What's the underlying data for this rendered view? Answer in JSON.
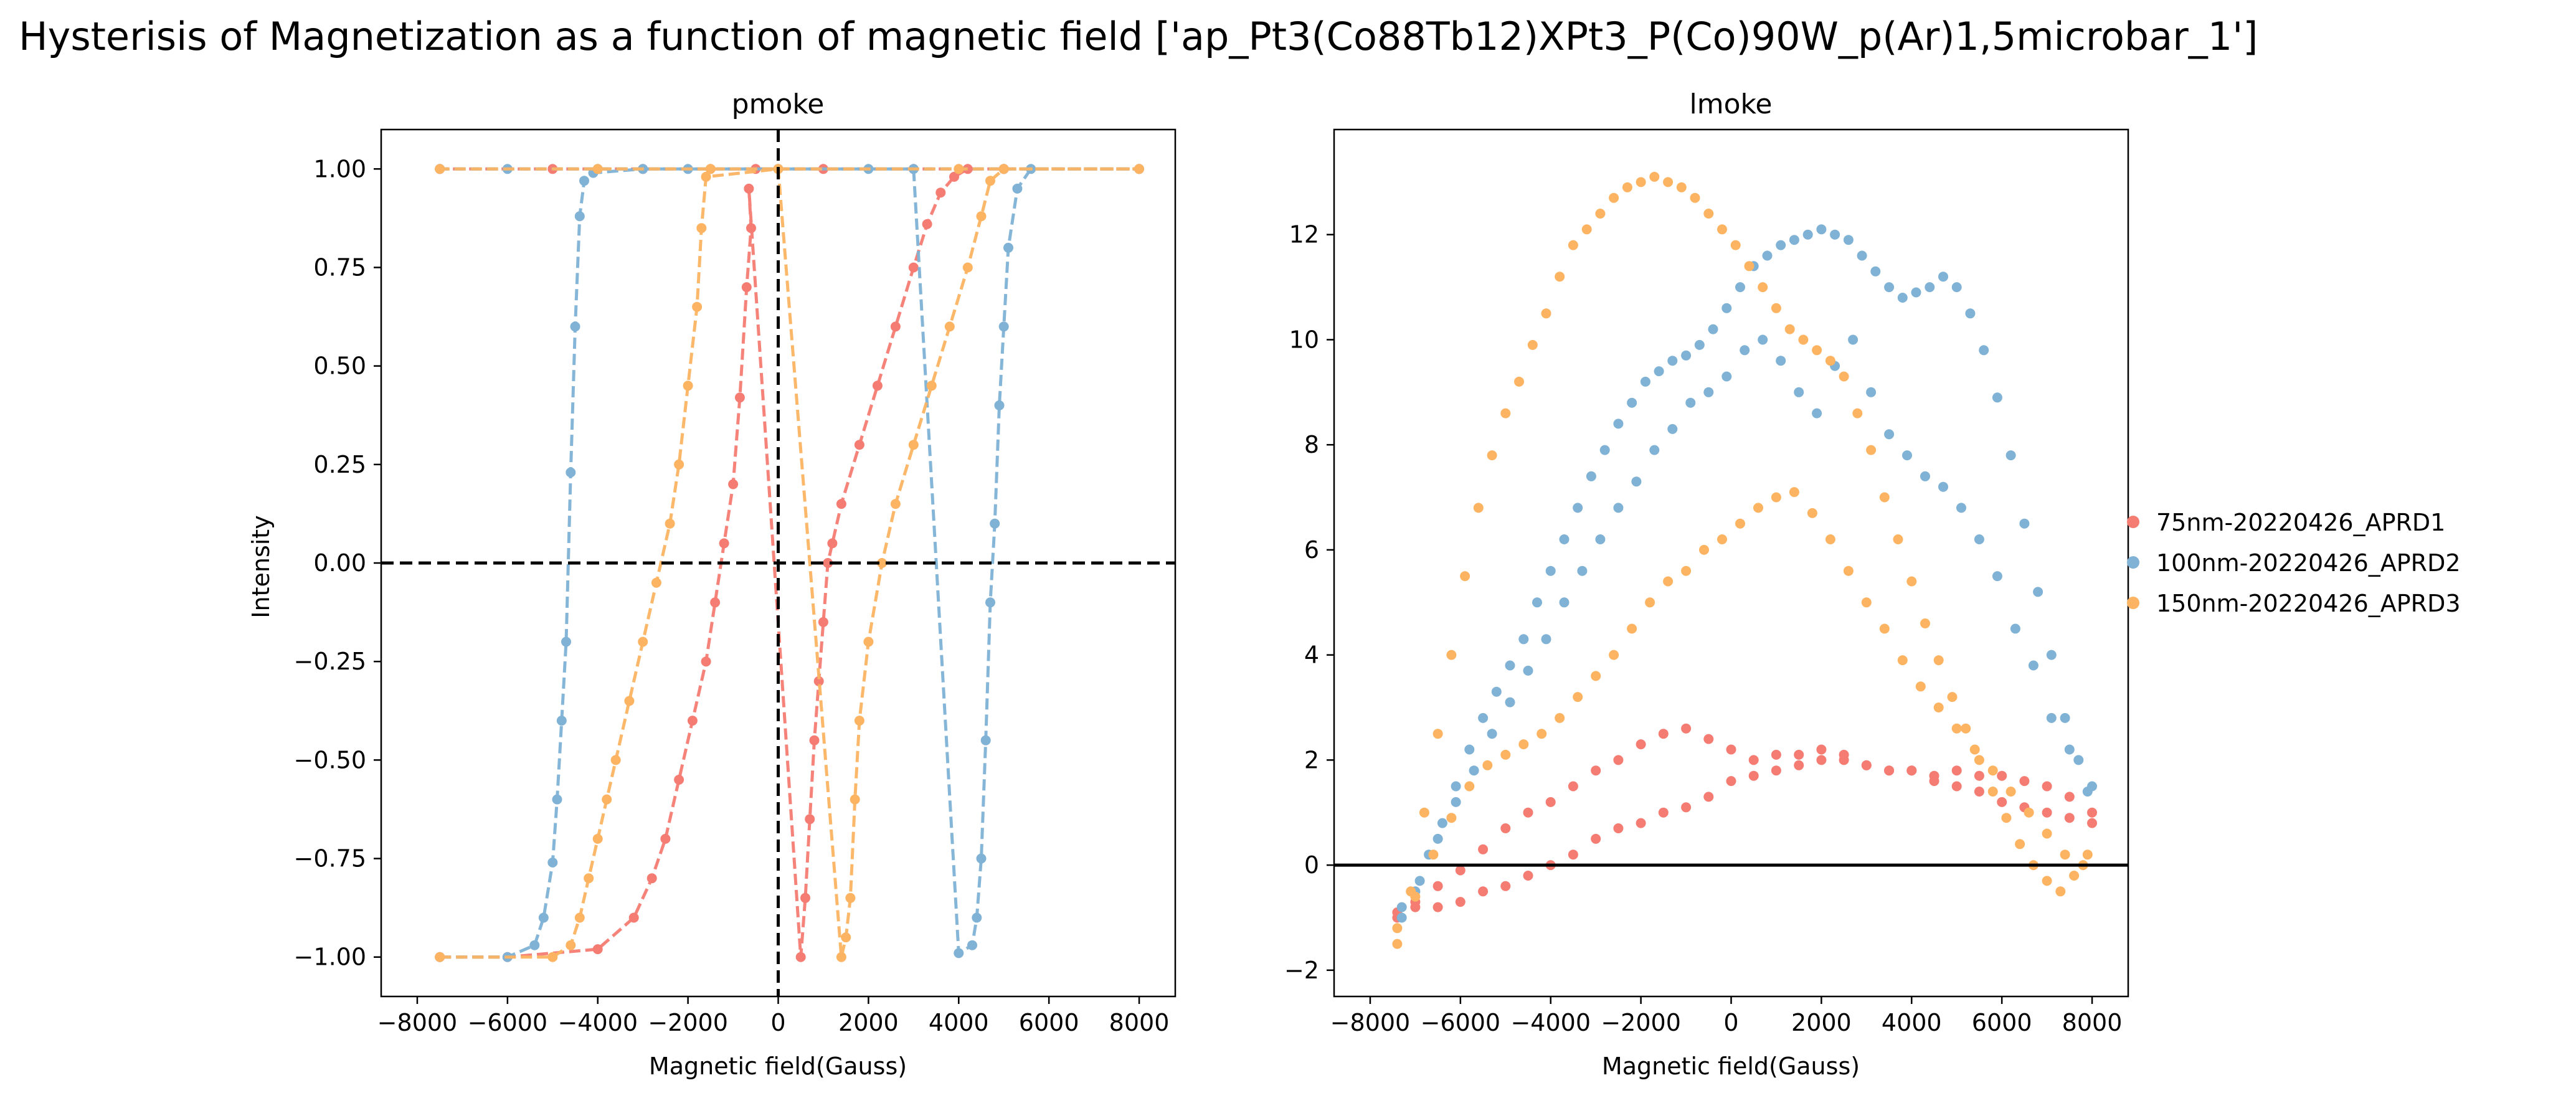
{
  "figure_title": "Hysterisis of Magnetization as a function of magnetic field ['ap_Pt3(Co88Tb12)XPt3_P(Co)90W_p(Ar)1,5microbar_1']",
  "colors": {
    "s1": "#f47c73",
    "s2": "#7fb2d5",
    "s3": "#fcb462",
    "axis": "#000000"
  },
  "legend": {
    "placement": "right-outside",
    "entries": [
      "75nm-20220426_APRD1",
      "100nm-20220426_APRD2",
      "150nm-20220426_APRD3"
    ]
  },
  "chart_data": [
    {
      "type": "line",
      "title": "pmoke",
      "xlabel": "Magnetic field(Gauss)",
      "ylabel": "Intensity",
      "xlim": [
        -8800,
        8800
      ],
      "ylim": [
        -1.1,
        1.1
      ],
      "xticks": [
        -8000,
        -6000,
        -4000,
        -2000,
        0,
        2000,
        4000,
        6000,
        8000
      ],
      "xtick_labels": [
        "−8000",
        "−6000",
        "−4000",
        "−2000",
        "0",
        "2000",
        "4000",
        "6000",
        "8000"
      ],
      "yticks": [
        -1.0,
        -0.75,
        -0.5,
        -0.25,
        0.0,
        0.25,
        0.5,
        0.75,
        1.0
      ],
      "ytick_labels": [
        "−1.00",
        "−0.75",
        "−0.50",
        "−0.25",
        "0.00",
        "0.25",
        "0.50",
        "0.75",
        "1.00"
      ],
      "reference_lines": {
        "x": 0,
        "y": 0,
        "style": "dashed"
      },
      "series": [
        {
          "name": "75nm-20220426_APRD1",
          "color": "#f47c73",
          "x": [
            -7500,
            -6000,
            -4000,
            -3200,
            -2800,
            -2500,
            -2200,
            -1900,
            -1600,
            -1400,
            -1200,
            -1000,
            -850,
            -700,
            -600,
            -650,
            500,
            600,
            700,
            800,
            900,
            1000,
            1100,
            1200,
            1400,
            1800,
            2200,
            2600,
            3000,
            3300,
            3600,
            3900,
            4200,
            5000,
            8000,
            5000,
            3000,
            1000,
            -500,
            -1500,
            -3000,
            -5000,
            -7500
          ],
          "y": [
            -1,
            -1,
            -0.98,
            -0.9,
            -0.8,
            -0.7,
            -0.55,
            -0.4,
            -0.25,
            -0.1,
            0.05,
            0.2,
            0.42,
            0.7,
            0.85,
            0.95,
            -1,
            -0.85,
            -0.65,
            -0.45,
            -0.3,
            -0.15,
            0,
            0.05,
            0.15,
            0.3,
            0.45,
            0.6,
            0.75,
            0.86,
            0.94,
            0.98,
            1.0,
            1.0,
            1.0,
            1.0,
            1.0,
            1.0,
            1.0,
            1.0,
            1.0,
            1.0,
            1.0
          ]
        },
        {
          "name": "100nm-20220426_APRD2",
          "color": "#7fb2d5",
          "x": [
            -7500,
            -6000,
            -5400,
            -5200,
            -5000,
            -4900,
            -4800,
            -4700,
            -4600,
            -4500,
            -4400,
            -4300,
            -4100,
            -3000,
            0,
            3000,
            4000,
            4300,
            4400,
            4500,
            4600,
            4700,
            4800,
            4900,
            5000,
            5100,
            5300,
            5600,
            8000,
            5000,
            2000,
            0,
            -2000,
            -4000,
            -6000,
            -7500
          ],
          "y": [
            -1,
            -1,
            -0.97,
            -0.9,
            -0.76,
            -0.6,
            -0.4,
            -0.2,
            0.23,
            0.6,
            0.88,
            0.97,
            0.99,
            1.0,
            1.0,
            1.0,
            -0.99,
            -0.97,
            -0.9,
            -0.75,
            -0.45,
            -0.1,
            0.1,
            0.4,
            0.6,
            0.8,
            0.95,
            1.0,
            1.0,
            1.0,
            1.0,
            1.0,
            1.0,
            1.0,
            1.0,
            1.0
          ]
        },
        {
          "name": "150nm-20220426_APRD3",
          "color": "#fcb462",
          "x": [
            -7500,
            -5000,
            -4600,
            -4400,
            -4200,
            -4000,
            -3800,
            -3600,
            -3300,
            -3000,
            -2700,
            -2400,
            -2200,
            -2000,
            -1800,
            -1700,
            -1600,
            0,
            1400,
            1500,
            1600,
            1700,
            1800,
            2000,
            2300,
            2600,
            3000,
            3400,
            3800,
            4200,
            4500,
            4700,
            5000,
            8000,
            4000,
            0,
            -1500,
            -4000,
            -7500
          ],
          "y": [
            -1,
            -1,
            -0.97,
            -0.9,
            -0.8,
            -0.7,
            -0.6,
            -0.5,
            -0.35,
            -0.2,
            -0.05,
            0.1,
            0.25,
            0.45,
            0.65,
            0.85,
            0.98,
            1.0,
            -1,
            -0.95,
            -0.85,
            -0.6,
            -0.4,
            -0.2,
            0,
            0.15,
            0.3,
            0.45,
            0.6,
            0.75,
            0.88,
            0.97,
            1.0,
            1.0,
            1.0,
            1.0,
            1.0,
            1.0,
            1.0
          ]
        }
      ]
    },
    {
      "type": "scatter",
      "title": "lmoke",
      "xlabel": "Magnetic field(Gauss)",
      "ylabel": "",
      "xlim": [
        -8800,
        8800
      ],
      "ylim": [
        -2.5,
        14.0
      ],
      "xticks": [
        -8000,
        -6000,
        -4000,
        -2000,
        0,
        2000,
        4000,
        6000,
        8000
      ],
      "xtick_labels": [
        "−8000",
        "−6000",
        "−4000",
        "−2000",
        "0",
        "2000",
        "4000",
        "6000",
        "8000"
      ],
      "yticks": [
        -2,
        0,
        2,
        4,
        6,
        8,
        10,
        12
      ],
      "ytick_labels": [
        "−2",
        "0",
        "2",
        "4",
        "6",
        "8",
        "10",
        "12"
      ],
      "reference_lines": {
        "y": 0,
        "style": "solid"
      },
      "series": [
        {
          "name": "75nm-20220426_APRD1",
          "color": "#f47c73",
          "x": [
            -7400,
            -7000,
            -6500,
            -6000,
            -5500,
            -5000,
            -4500,
            -4000,
            -3500,
            -3000,
            -2500,
            -2000,
            -1500,
            -1000,
            -500,
            0,
            500,
            1000,
            1500,
            2000,
            2500,
            3000,
            3500,
            4000,
            4500,
            5000,
            5500,
            6000,
            6500,
            7000,
            7500,
            8000,
            -7400,
            -7000,
            -6500,
            -6000,
            -5500,
            -5000,
            -4500,
            -4000,
            -3500,
            -3000,
            -2500,
            -2000,
            -1500,
            -1000,
            -500,
            0,
            500,
            1000,
            1500,
            2000,
            2500,
            3000,
            3500,
            4000,
            4500,
            5000,
            5500,
            6000,
            6500,
            7000,
            7500,
            8000
          ],
          "y": [
            -1.0,
            -0.7,
            -0.4,
            -0.1,
            0.3,
            0.7,
            1.0,
            1.2,
            1.5,
            1.8,
            2.0,
            2.3,
            2.5,
            2.6,
            2.4,
            2.2,
            2.0,
            2.1,
            2.1,
            2.2,
            2.0,
            1.9,
            1.8,
            1.8,
            1.7,
            1.8,
            1.7,
            1.7,
            1.6,
            1.5,
            1.3,
            1.0,
            -0.9,
            -0.8,
            -0.8,
            -0.7,
            -0.5,
            -0.4,
            -0.2,
            0.0,
            0.2,
            0.5,
            0.7,
            0.8,
            1.0,
            1.1,
            1.3,
            1.6,
            1.7,
            1.8,
            1.9,
            2.0,
            2.1,
            1.9,
            1.8,
            1.8,
            1.6,
            1.5,
            1.4,
            1.2,
            1.1,
            1.0,
            0.9,
            0.8
          ]
        },
        {
          "name": "100nm-20220426_APRD2",
          "color": "#7fb2d5",
          "x": [
            -7300,
            -7000,
            -6700,
            -6400,
            -6100,
            -5800,
            -5500,
            -5200,
            -4900,
            -4600,
            -4300,
            -4000,
            -3700,
            -3400,
            -3100,
            -2800,
            -2500,
            -2200,
            -1900,
            -1600,
            -1300,
            -1000,
            -700,
            -400,
            -100,
            200,
            500,
            800,
            1100,
            1400,
            1700,
            2000,
            2300,
            2600,
            2900,
            3200,
            3500,
            3800,
            4100,
            4400,
            4700,
            5000,
            5300,
            5600,
            5900,
            6200,
            6500,
            6800,
            7100,
            7400,
            7700,
            8000,
            -7300,
            -6900,
            -6500,
            -6100,
            -5700,
            -5300,
            -4900,
            -4500,
            -4100,
            -3700,
            -3300,
            -2900,
            -2500,
            -2100,
            -1700,
            -1300,
            -900,
            -500,
            -100,
            300,
            700,
            1100,
            1500,
            1900,
            2300,
            2700,
            3100,
            3500,
            3900,
            4300,
            4700,
            5100,
            5500,
            5900,
            6300,
            6700,
            7100,
            7500,
            7900
          ],
          "y": [
            -1.0,
            -0.5,
            0.2,
            0.8,
            1.5,
            2.2,
            2.8,
            3.3,
            3.8,
            4.3,
            5.0,
            5.6,
            6.2,
            6.8,
            7.4,
            7.9,
            8.4,
            8.8,
            9.2,
            9.4,
            9.6,
            9.7,
            9.9,
            10.2,
            10.6,
            11.0,
            11.4,
            11.6,
            11.8,
            11.9,
            12.0,
            12.1,
            12.0,
            11.9,
            11.6,
            11.3,
            11.0,
            10.8,
            10.9,
            11.0,
            11.2,
            11.0,
            10.5,
            9.8,
            8.9,
            7.8,
            6.5,
            5.2,
            4.0,
            2.8,
            2.0,
            1.5,
            -0.8,
            -0.3,
            0.5,
            1.2,
            1.8,
            2.5,
            3.1,
            3.7,
            4.3,
            5.0,
            5.6,
            6.2,
            6.8,
            7.3,
            7.9,
            8.3,
            8.8,
            9.0,
            9.3,
            9.8,
            10.0,
            9.6,
            9.0,
            8.6,
            9.5,
            10.0,
            9.0,
            8.2,
            7.8,
            7.4,
            7.2,
            6.8,
            6.2,
            5.5,
            4.5,
            3.8,
            2.8,
            2.2,
            1.4
          ]
        },
        {
          "name": "150nm-20220426_APRD3",
          "color": "#fcb462",
          "x": [
            -7400,
            -7100,
            -6800,
            -6500,
            -6200,
            -5900,
            -5600,
            -5300,
            -5000,
            -4700,
            -4400,
            -4100,
            -3800,
            -3500,
            -3200,
            -2900,
            -2600,
            -2300,
            -2000,
            -1700,
            -1400,
            -1100,
            -800,
            -500,
            -200,
            100,
            400,
            700,
            1000,
            1300,
            1600,
            1900,
            2200,
            2500,
            2800,
            3100,
            3400,
            3700,
            4000,
            4300,
            4600,
            4900,
            5200,
            5500,
            5800,
            6100,
            6400,
            6700,
            7000,
            7300,
            7600,
            7900,
            -7400,
            -7000,
            -6600,
            -6200,
            -5800,
            -5400,
            -5000,
            -4600,
            -4200,
            -3800,
            -3400,
            -3000,
            -2600,
            -2200,
            -1800,
            -1400,
            -1000,
            -600,
            -200,
            200,
            600,
            1000,
            1400,
            1800,
            2200,
            2600,
            3000,
            3400,
            3800,
            4200,
            4600,
            5000,
            5400,
            5800,
            6200,
            6600,
            7000,
            7400,
            7800
          ],
          "y": [
            -1.5,
            -0.5,
            1.0,
            2.5,
            4.0,
            5.5,
            6.8,
            7.8,
            8.6,
            9.2,
            9.9,
            10.5,
            11.2,
            11.8,
            12.1,
            12.4,
            12.7,
            12.9,
            13.0,
            13.1,
            13.0,
            12.9,
            12.7,
            12.4,
            12.1,
            11.8,
            11.4,
            11.0,
            10.6,
            10.2,
            10.0,
            9.8,
            9.6,
            9.3,
            8.6,
            7.9,
            7.0,
            6.2,
            5.4,
            4.6,
            3.9,
            3.2,
            2.6,
            2.0,
            1.4,
            0.9,
            0.4,
            0.0,
            -0.3,
            -0.5,
            -0.2,
            0.2,
            -1.2,
            -0.6,
            0.2,
            0.9,
            1.5,
            1.9,
            2.1,
            2.3,
            2.5,
            2.8,
            3.2,
            3.6,
            4.0,
            4.5,
            5.0,
            5.4,
            5.6,
            6.0,
            6.2,
            6.5,
            6.8,
            7.0,
            7.1,
            6.7,
            6.2,
            5.6,
            5.0,
            4.5,
            3.9,
            3.4,
            3.0,
            2.6,
            2.2,
            1.8,
            1.4,
            1.0,
            0.6,
            0.2,
            0.0
          ]
        }
      ]
    }
  ]
}
